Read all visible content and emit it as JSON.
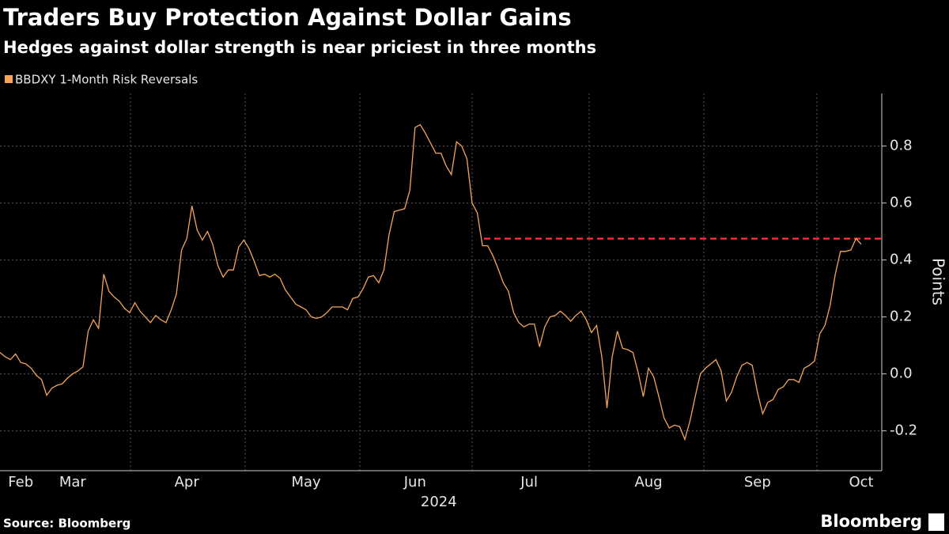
{
  "chart_data": {
    "type": "line",
    "title": "Traders Buy Protection Against Dollar Gains",
    "subtitle": "Hedges against dollar strength is near priciest in three months",
    "y_label": "Points",
    "x_sublabel": "2024",
    "source": "Source: Bloomberg",
    "brand": "Bloomberg",
    "categories": [
      null,
      null,
      null,
      null,
      "Feb",
      null,
      null,
      null,
      null,
      null,
      null,
      null,
      null,
      null,
      "Mar",
      null,
      null,
      null,
      null,
      null,
      null,
      null,
      null,
      null,
      null,
      null,
      null,
      null,
      null,
      null,
      null,
      null,
      null,
      null,
      null,
      null,
      "Apr",
      null,
      null,
      null,
      null,
      null,
      null,
      null,
      null,
      null,
      null,
      null,
      null,
      null,
      null,
      null,
      null,
      null,
      null,
      null,
      null,
      null,
      null,
      "May",
      null,
      null,
      null,
      null,
      null,
      null,
      null,
      null,
      null,
      null,
      null,
      null,
      null,
      null,
      null,
      null,
      null,
      null,
      null,
      null,
      "Jun",
      null,
      null,
      null,
      null,
      null,
      null,
      null,
      null,
      null,
      null,
      null,
      null,
      null,
      null,
      null,
      null,
      null,
      null,
      null,
      null,
      null,
      "Jul",
      null,
      null,
      null,
      null,
      null,
      null,
      null,
      null,
      null,
      null,
      null,
      null,
      null,
      null,
      null,
      null,
      null,
      null,
      null,
      null,
      null,
      null,
      "Aug",
      null,
      null,
      null,
      null,
      null,
      null,
      null,
      null,
      null,
      null,
      null,
      null,
      null,
      null,
      null,
      null,
      null,
      null,
      null,
      null,
      "Sep",
      null,
      null,
      null,
      null,
      null,
      null,
      null,
      null,
      null,
      null,
      null,
      null,
      null,
      null,
      null,
      null,
      null,
      null,
      null,
      "Oct"
    ],
    "series": [
      {
        "name": "BBDXY 1-Month Risk Reversals",
        "color": "#f5a55a",
        "values": [
          0.075,
          0.06,
          0.05,
          0.07,
          0.04,
          0.035,
          0.02,
          -0.005,
          -0.02,
          -0.075,
          -0.05,
          -0.04,
          -0.035,
          -0.015,
          0,
          0.01,
          0.025,
          0.15,
          0.19,
          0.16,
          0.35,
          0.29,
          0.27,
          0.255,
          0.23,
          0.215,
          0.25,
          0.22,
          0.2,
          0.18,
          0.205,
          0.19,
          0.18,
          0.225,
          0.28,
          0.435,
          0.475,
          0.59,
          0.505,
          0.47,
          0.5,
          0.455,
          0.38,
          0.34,
          0.365,
          0.365,
          0.445,
          0.47,
          0.44,
          0.395,
          0.345,
          0.35,
          0.34,
          0.35,
          0.335,
          0.295,
          0.27,
          0.245,
          0.235,
          0.225,
          0.2,
          0.195,
          0.2,
          0.215,
          0.235,
          0.235,
          0.235,
          0.225,
          0.265,
          0.27,
          0.3,
          0.34,
          0.345,
          0.32,
          0.365,
          0.49,
          0.57,
          0.575,
          0.58,
          0.645,
          0.865,
          0.875,
          0.845,
          0.81,
          0.775,
          0.775,
          0.73,
          0.7,
          0.815,
          0.8,
          0.755,
          0.6,
          0.565,
          0.45,
          0.45,
          0.415,
          0.37,
          0.32,
          0.29,
          0.215,
          0.18,
          0.165,
          0.175,
          0.175,
          0.095,
          0.165,
          0.2,
          0.205,
          0.22,
          0.205,
          0.185,
          0.205,
          0.22,
          0.19,
          0.145,
          0.17,
          0.06,
          -0.12,
          0.06,
          0.15,
          0.09,
          0.085,
          0.075,
          0.005,
          -0.08,
          0.02,
          -0.01,
          -0.08,
          -0.155,
          -0.19,
          -0.18,
          -0.185,
          -0.23,
          -0.165,
          -0.08,
          0,
          0.02,
          0.035,
          0.05,
          0.01,
          -0.095,
          -0.065,
          -0.01,
          0.03,
          0.04,
          0.03,
          -0.065,
          -0.14,
          -0.1,
          -0.09,
          -0.055,
          -0.045,
          -0.02,
          -0.02,
          -0.03,
          0.02,
          0.03,
          0.045,
          0.14,
          0.17,
          0.24,
          0.35,
          0.43,
          0.43,
          0.435,
          0.475,
          0.455
        ]
      }
    ],
    "reference_line": {
      "value": 0.475,
      "color": "#e8333c"
    },
    "ylim": [
      -0.34,
      0.985
    ],
    "yticks": [
      -0.2,
      {
        "value": 0,
        "label": "0.0"
      },
      0.2,
      0.4,
      0.6,
      0.8
    ],
    "grid": true
  }
}
